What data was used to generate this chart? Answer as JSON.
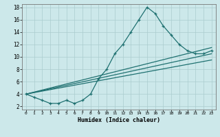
{
  "xlabel": "Humidex (Indice chaleur)",
  "bg_color": "#cce8ea",
  "grid_color": "#aaccce",
  "line_color": "#1e7070",
  "xlim": [
    -0.5,
    23.5
  ],
  "ylim": [
    1.5,
    18.5
  ],
  "yticks": [
    2,
    4,
    6,
    8,
    10,
    12,
    14,
    16,
    18
  ],
  "xticks": [
    0,
    1,
    2,
    3,
    4,
    5,
    6,
    7,
    8,
    9,
    10,
    11,
    12,
    13,
    14,
    15,
    16,
    17,
    18,
    19,
    20,
    21,
    22,
    23
  ],
  "main_x": [
    0,
    1,
    2,
    3,
    4,
    5,
    6,
    7,
    8,
    9,
    10,
    11,
    12,
    13,
    14,
    15,
    16,
    17,
    18,
    19,
    20,
    21,
    22,
    23
  ],
  "main_y": [
    4,
    3.5,
    3,
    2.5,
    2.5,
    3,
    2.5,
    3,
    4,
    6.5,
    8,
    10.5,
    12,
    14,
    16,
    18,
    17,
    15,
    13.5,
    12,
    11,
    10.5,
    10.5,
    11
  ],
  "line2_x": [
    0,
    23
  ],
  "line2_y": [
    4,
    11.5
  ],
  "line3_x": [
    0,
    23
  ],
  "line3_y": [
    4,
    10.5
  ],
  "line4_x": [
    0,
    23
  ],
  "line4_y": [
    4,
    9.5
  ]
}
